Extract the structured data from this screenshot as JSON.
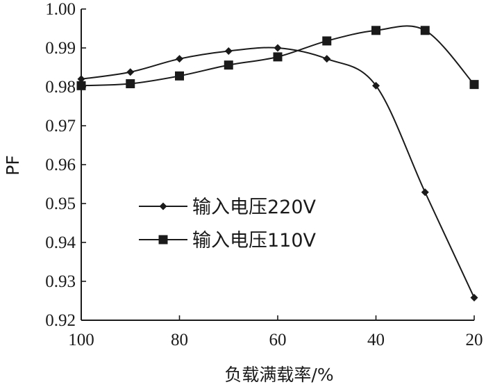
{
  "chart_data": {
    "type": "line",
    "xlabel": "负载满载率/%",
    "ylabel": "PF",
    "x_reversed": true,
    "xlim": [
      100,
      20
    ],
    "ylim": [
      0.92,
      1.0
    ],
    "xticks": [
      100,
      80,
      60,
      40,
      20
    ],
    "yticks": [
      0.92,
      0.93,
      0.94,
      0.95,
      0.96,
      0.97,
      0.98,
      0.99,
      1.0
    ],
    "xtick_labels": [
      "100",
      "80",
      "60",
      "40",
      "20"
    ],
    "ytick_labels": [
      "0.92",
      "0.93",
      "0.94",
      "0.95",
      "0.96",
      "0.97",
      "0.98",
      "0.99",
      "1.00"
    ],
    "grid": false,
    "legend_position": "center-left",
    "series": [
      {
        "name": "输入电压220V",
        "marker": "diamond",
        "color": "#1a1a1a",
        "x": [
          100,
          90,
          80,
          70,
          60,
          50,
          40,
          30,
          20
        ],
        "y": [
          0.982,
          0.9838,
          0.9872,
          0.9892,
          0.99,
          0.9872,
          0.9803,
          0.9529,
          0.9258
        ]
      },
      {
        "name": "输入电压110V",
        "marker": "square",
        "color": "#1a1a1a",
        "x": [
          100,
          90,
          80,
          70,
          60,
          50,
          40,
          30,
          20
        ],
        "y": [
          0.9803,
          0.9808,
          0.9828,
          0.9856,
          0.9877,
          0.9918,
          0.9945,
          0.9945,
          0.9806
        ]
      }
    ]
  }
}
